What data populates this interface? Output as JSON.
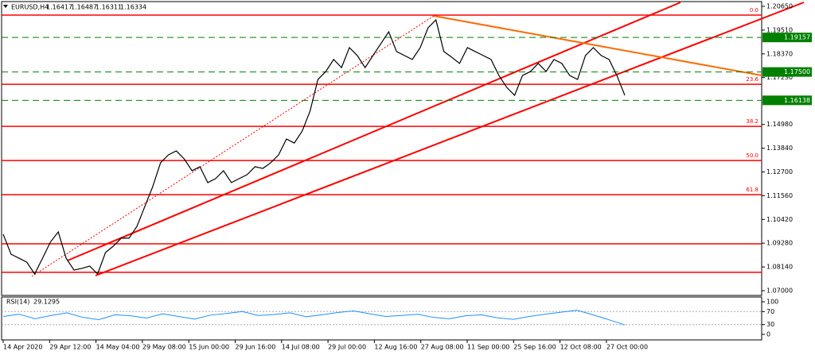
{
  "chart_data": [
    {
      "type": "line",
      "title": "EURUSD,H4",
      "quote": [
        1.16417,
        1.16487,
        1.16311,
        1.16334
      ],
      "color": "#000000",
      "values": [
        1.0971,
        1.0875,
        1.0856,
        1.0837,
        1.078,
        1.0856,
        1.0933,
        1.0982,
        1.0856,
        1.0799,
        1.0807,
        1.0818,
        1.078,
        1.0883,
        1.0914,
        1.0952,
        1.0952,
        1.1009,
        1.1104,
        1.1199,
        1.1314,
        1.1352,
        1.1371,
        1.1333,
        1.1276,
        1.1295,
        1.1219,
        1.1238,
        1.1276,
        1.1219,
        1.1238,
        1.1257,
        1.1295,
        1.1287,
        1.1314,
        1.1352,
        1.1428,
        1.1409,
        1.1466,
        1.1562,
        1.1714,
        1.1752,
        1.181,
        1.1771,
        1.1867,
        1.1829,
        1.1771,
        1.1829,
        1.1886,
        1.1943,
        1.1848,
        1.1829,
        1.181,
        1.1867,
        1.1962,
        1.2,
        1.1848,
        1.1821,
        1.1791,
        1.1867,
        1.1848,
        1.1829,
        1.181,
        1.1733,
        1.1676,
        1.1638,
        1.1733,
        1.1752,
        1.1791,
        1.1752,
        1.181,
        1.1791,
        1.1733,
        1.1714,
        1.1829,
        1.1867,
        1.1829,
        1.181,
        1.1733,
        1.1638
      ],
      "x_labels": [
        "14 Apr 2020",
        "29 Apr 12:00",
        "14 May 04:00",
        "29 May 08:00",
        "15 Jun 00:00",
        "29 Jun 16:00",
        "14 Jul 08:00",
        "29 Jul 00:00",
        "12 Aug 16:00",
        "27 Aug 08:00",
        "11 Sep 00:00",
        "25 Sep 16:00",
        "12 Oct 08:00",
        "27 Oct 00:00"
      ],
      "ylim": [
        1.07,
        1.2065
      ],
      "yticks": [
        {
          "value": 1.2065,
          "label": "1.20650"
        },
        {
          "value": 1.1951,
          "label": "1.19510"
        },
        {
          "value": 1.1837,
          "label": "1.18370"
        },
        {
          "value": 1.1723,
          "label": "1.17230"
        },
        {
          "value": 1.1498,
          "label": "1.14980"
        },
        {
          "value": 1.1384,
          "label": "1.13840"
        },
        {
          "value": 1.127,
          "label": "1.12700"
        },
        {
          "value": 1.1156,
          "label": "1.11560"
        },
        {
          "value": 1.1042,
          "label": "1.10420"
        },
        {
          "value": 1.0928,
          "label": "1.09280"
        },
        {
          "value": 1.0814,
          "label": "1.08140"
        },
        {
          "value": 1.07,
          "label": "1.07000"
        }
      ],
      "fib_levels": [
        {
          "level": {
            "value": 0,
            "label": "0.0"
          },
          "price": 1.2023
        },
        {
          "level": 23.6,
          "price": 1.1691
        },
        {
          "level": 38.2,
          "price": 1.1489
        },
        {
          "level": {
            "value": 50,
            "label": "50.0"
          },
          "price": 1.1325
        },
        {
          "level": 61.8,
          "price": 1.1161
        }
      ],
      "red_levels": [
        1.0925,
        1.0788
      ],
      "level_color": "#ff0000",
      "green_levels": [
        1.19157,
        {
          "value": 1.175,
          "label": "1.17500"
        },
        1.16138
      ],
      "green_color": "#008000"
    },
    {
      "type": "line",
      "title": "RSI(14)",
      "current": 29.1295,
      "color": "#1e90ff",
      "values": [
        55,
        62,
        48,
        58,
        66,
        52,
        45,
        60,
        57,
        50,
        63,
        55,
        47,
        59,
        64,
        70,
        58,
        61,
        66,
        54,
        60,
        67,
        72,
        63,
        55,
        58,
        62,
        52,
        48,
        57,
        60,
        51,
        46,
        55,
        62,
        68,
        74,
        60,
        45,
        29.1295
      ],
      "ylim": [
        0,
        100
      ],
      "yticks": [
        100,
        70,
        30,
        0
      ],
      "dashed": [
        70,
        30
      ]
    }
  ]
}
